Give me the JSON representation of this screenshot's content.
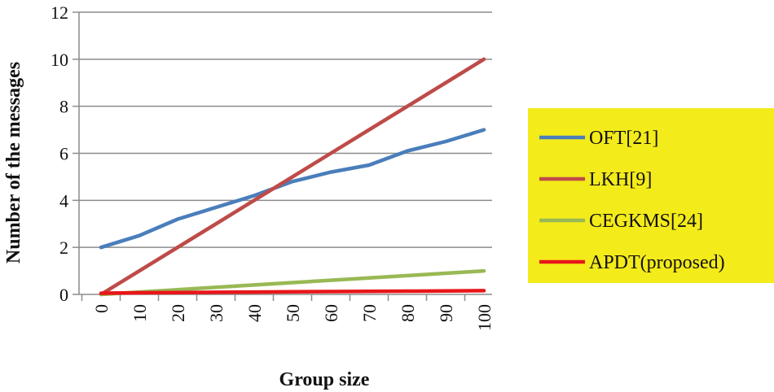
{
  "chart_data": {
    "type": "line",
    "title": "",
    "xlabel": "Group size",
    "ylabel": "Number of the messages",
    "x": [
      0,
      10,
      20,
      30,
      40,
      50,
      60,
      70,
      80,
      90,
      100
    ],
    "x_tick_labels": [
      "0",
      "10",
      "20",
      "30",
      "40",
      "50",
      "60",
      "70",
      "80",
      "90",
      "100"
    ],
    "ylim": [
      0,
      12
    ],
    "y_ticks": [
      0,
      2,
      4,
      6,
      8,
      10,
      12
    ],
    "y_tick_labels": [
      "0",
      "2",
      "4",
      "6",
      "8",
      "10",
      "12"
    ],
    "grid": true,
    "legend_position": "right",
    "legend_background": "#f4eb1a",
    "series": [
      {
        "name": "OFT[21]",
        "color": "#4a7ebb",
        "values": [
          2.0,
          2.5,
          3.2,
          3.7,
          4.2,
          4.8,
          5.2,
          5.5,
          6.1,
          6.5,
          7.0
        ]
      },
      {
        "name": "LKH[9]",
        "color": "#be4b48",
        "values": [
          0,
          1,
          2,
          3,
          4,
          5,
          6,
          7,
          8,
          9,
          10
        ]
      },
      {
        "name": "CEGKMS[24]",
        "color": "#98b954",
        "values": [
          0,
          0.1,
          0.2,
          0.3,
          0.4,
          0.5,
          0.6,
          0.7,
          0.8,
          0.9,
          1.0
        ]
      },
      {
        "name": "APDT(proposed)",
        "color": "#e8161a",
        "values": [
          0.05,
          0.07,
          0.08,
          0.09,
          0.1,
          0.11,
          0.12,
          0.13,
          0.14,
          0.15,
          0.16
        ]
      }
    ]
  }
}
